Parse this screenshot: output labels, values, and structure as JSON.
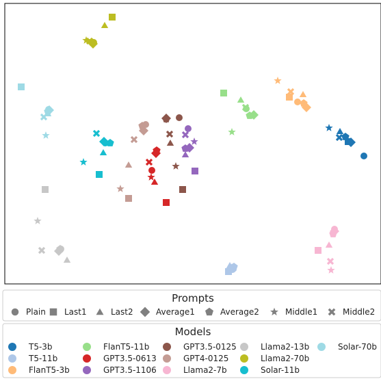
{
  "chart_data": {
    "type": "scatter",
    "title": "",
    "xlabel": "",
    "ylabel": "",
    "xlim": [
      0,
      550
    ],
    "ylim": [
      0,
      410
    ],
    "grid": false,
    "axes_ticks": false,
    "legends": [
      {
        "title": "Prompts",
        "placement": "below-plot",
        "entries": [
          {
            "label": "Plain",
            "marker": "circle"
          },
          {
            "label": "Last1",
            "marker": "square"
          },
          {
            "label": "Last2",
            "marker": "triangle"
          },
          {
            "label": "Average1",
            "marker": "diamond"
          },
          {
            "label": "Average2",
            "marker": "pentagon"
          },
          {
            "label": "Middle1",
            "marker": "star"
          },
          {
            "label": "Middle2",
            "marker": "x"
          }
        ]
      },
      {
        "title": "Models",
        "placement": "bottom",
        "entries": [
          {
            "label": "T5-3b",
            "color": "#1f77b4"
          },
          {
            "label": "T5-11b",
            "color": "#aec7e8"
          },
          {
            "label": "FlanT5-3b",
            "color": "#ffbb78"
          },
          {
            "label": "FlanT5-11b",
            "color": "#98df8a"
          },
          {
            "label": "GPT3.5-0613",
            "color": "#d62728"
          },
          {
            "label": "GPT3.5-1106",
            "color": "#9467bd"
          },
          {
            "label": "GPT3.5-0125",
            "color": "#8c564b"
          },
          {
            "label": "GPT4-0125",
            "color": "#c49c94"
          },
          {
            "label": "Llama2-7b",
            "color": "#f7b6d2"
          },
          {
            "label": "Llama2-13b",
            "color": "#c7c7c7"
          },
          {
            "label": "Llama2-70b",
            "color": "#bcbd22"
          },
          {
            "label": "Solar-11b",
            "color": "#17becf"
          },
          {
            "label": "Solar-70b",
            "color": "#9edae5"
          }
        ]
      }
    ],
    "series": [
      {
        "name": "T5-3b",
        "color": "#1f77b4",
        "points": [
          {
            "x": 525,
            "y": 187,
            "m": "circle"
          },
          {
            "x": 502,
            "y": 208,
            "m": "square"
          },
          {
            "x": 490,
            "y": 223,
            "m": "triangle"
          },
          {
            "x": 506,
            "y": 207,
            "m": "diamond"
          },
          {
            "x": 498,
            "y": 215,
            "m": "pentagon"
          },
          {
            "x": 474,
            "y": 228,
            "m": "star"
          },
          {
            "x": 489,
            "y": 214,
            "m": "x"
          }
        ]
      },
      {
        "name": "T5-11b",
        "color": "#aec7e8",
        "points": [
          {
            "x": 333,
            "y": 21,
            "m": "circle"
          },
          {
            "x": 327,
            "y": 18,
            "m": "square"
          },
          {
            "x": 329,
            "y": 27,
            "m": "triangle"
          },
          {
            "x": 331,
            "y": 22,
            "m": "diamond"
          },
          {
            "x": 335,
            "y": 25,
            "m": "pentagon"
          },
          {
            "x": 332,
            "y": 24,
            "m": "star"
          },
          {
            "x": 334,
            "y": 23,
            "m": "x"
          }
        ]
      },
      {
        "name": "FlanT5-3b",
        "color": "#ffbb78",
        "points": [
          {
            "x": 428,
            "y": 266,
            "m": "circle"
          },
          {
            "x": 416,
            "y": 273,
            "m": "square"
          },
          {
            "x": 436,
            "y": 277,
            "m": "triangle"
          },
          {
            "x": 441,
            "y": 258,
            "m": "diamond"
          },
          {
            "x": 437,
            "y": 264,
            "m": "pentagon"
          },
          {
            "x": 399,
            "y": 297,
            "m": "star"
          },
          {
            "x": 418,
            "y": 281,
            "m": "x"
          }
        ]
      },
      {
        "name": "FlanT5-11b",
        "color": "#98df8a",
        "points": [
          {
            "x": 353,
            "y": 256,
            "m": "circle"
          },
          {
            "x": 320,
            "y": 279,
            "m": "square"
          },
          {
            "x": 345,
            "y": 269,
            "m": "triangle"
          },
          {
            "x": 364,
            "y": 247,
            "m": "diamond"
          },
          {
            "x": 358,
            "y": 246,
            "m": "pentagon"
          },
          {
            "x": 332,
            "y": 222,
            "m": "star"
          },
          {
            "x": 352,
            "y": 258,
            "m": "x"
          }
        ]
      },
      {
        "name": "GPT3.5-0613",
        "color": "#d62728",
        "points": [
          {
            "x": 215,
            "y": 166,
            "m": "circle"
          },
          {
            "x": 236,
            "y": 119,
            "m": "square"
          },
          {
            "x": 219,
            "y": 149,
            "m": "triangle"
          },
          {
            "x": 221,
            "y": 191,
            "m": "diamond"
          },
          {
            "x": 222,
            "y": 195,
            "m": "pentagon"
          },
          {
            "x": 214,
            "y": 156,
            "m": "star"
          },
          {
            "x": 211,
            "y": 178,
            "m": "x"
          }
        ]
      },
      {
        "name": "GPT3.5-1106",
        "color": "#9467bd",
        "points": [
          {
            "x": 268,
            "y": 227,
            "m": "circle"
          },
          {
            "x": 278,
            "y": 165,
            "m": "square"
          },
          {
            "x": 264,
            "y": 189,
            "m": "triangle"
          },
          {
            "x": 270,
            "y": 199,
            "m": "diamond"
          },
          {
            "x": 264,
            "y": 198,
            "m": "pentagon"
          },
          {
            "x": 277,
            "y": 208,
            "m": "star"
          },
          {
            "x": 264,
            "y": 218,
            "m": "x"
          }
        ]
      },
      {
        "name": "GPT3.5-0125",
        "color": "#8c564b",
        "points": [
          {
            "x": 255,
            "y": 243,
            "m": "circle"
          },
          {
            "x": 260,
            "y": 138,
            "m": "square"
          },
          {
            "x": 242,
            "y": 206,
            "m": "triangle"
          },
          {
            "x": 236,
            "y": 242,
            "m": "diamond"
          },
          {
            "x": 236,
            "y": 241,
            "m": "pentagon"
          },
          {
            "x": 250,
            "y": 172,
            "m": "star"
          },
          {
            "x": 241,
            "y": 219,
            "m": "x"
          }
        ]
      },
      {
        "name": "GPT4-0125",
        "color": "#c49c94",
        "points": [
          {
            "x": 206,
            "y": 233,
            "m": "circle"
          },
          {
            "x": 181,
            "y": 125,
            "m": "square"
          },
          {
            "x": 181,
            "y": 174,
            "m": "triangle"
          },
          {
            "x": 203,
            "y": 224,
            "m": "diamond"
          },
          {
            "x": 201,
            "y": 231,
            "m": "pentagon"
          },
          {
            "x": 169,
            "y": 139,
            "m": "star"
          },
          {
            "x": 189,
            "y": 211,
            "m": "x"
          }
        ]
      },
      {
        "name": "Llama2-7b",
        "color": "#f7b6d2",
        "points": [
          {
            "x": 482,
            "y": 80,
            "m": "circle"
          },
          {
            "x": 458,
            "y": 49,
            "m": "square"
          },
          {
            "x": 474,
            "y": 57,
            "m": "triangle"
          },
          {
            "x": 482,
            "y": 77,
            "m": "diamond"
          },
          {
            "x": 480,
            "y": 73,
            "m": "pentagon"
          },
          {
            "x": 477,
            "y": 20,
            "m": "star"
          },
          {
            "x": 476,
            "y": 33,
            "m": "x"
          }
        ]
      },
      {
        "name": "Llama2-13b",
        "color": "#c7c7c7",
        "points": [
          {
            "x": 82,
            "y": 51,
            "m": "circle"
          },
          {
            "x": 59,
            "y": 138,
            "m": "square"
          },
          {
            "x": 91,
            "y": 35,
            "m": "triangle"
          },
          {
            "x": 79,
            "y": 48,
            "m": "diamond"
          },
          {
            "x": 81,
            "y": 51,
            "m": "pentagon"
          },
          {
            "x": 48,
            "y": 92,
            "m": "star"
          },
          {
            "x": 54,
            "y": 49,
            "m": "x"
          }
        ]
      },
      {
        "name": "Llama2-70b",
        "color": "#bcbd22",
        "points": [
          {
            "x": 130,
            "y": 353,
            "m": "circle"
          },
          {
            "x": 157,
            "y": 390,
            "m": "square"
          },
          {
            "x": 146,
            "y": 378,
            "m": "triangle"
          },
          {
            "x": 129,
            "y": 351,
            "m": "diamond"
          },
          {
            "x": 128,
            "y": 353,
            "m": "pentagon"
          },
          {
            "x": 119,
            "y": 356,
            "m": "star"
          },
          {
            "x": 124,
            "y": 355,
            "m": "x"
          }
        ]
      },
      {
        "name": "Solar-11b",
        "color": "#17becf",
        "points": [
          {
            "x": 147,
            "y": 206,
            "m": "circle"
          },
          {
            "x": 138,
            "y": 160,
            "m": "square"
          },
          {
            "x": 144,
            "y": 192,
            "m": "triangle"
          },
          {
            "x": 145,
            "y": 208,
            "m": "diamond"
          },
          {
            "x": 154,
            "y": 206,
            "m": "pentagon"
          },
          {
            "x": 115,
            "y": 178,
            "m": "star"
          },
          {
            "x": 134,
            "y": 220,
            "m": "x"
          }
        ]
      },
      {
        "name": "Solar-70b",
        "color": "#9edae5",
        "points": [
          {
            "x": 64,
            "y": 255,
            "m": "circle"
          },
          {
            "x": 24,
            "y": 288,
            "m": "square"
          },
          {
            "x": 63,
            "y": 249,
            "m": "triangle"
          },
          {
            "x": 65,
            "y": 254,
            "m": "diamond"
          },
          {
            "x": 63,
            "y": 252,
            "m": "pentagon"
          },
          {
            "x": 60,
            "y": 217,
            "m": "star"
          },
          {
            "x": 57,
            "y": 244,
            "m": "x"
          }
        ]
      }
    ]
  }
}
